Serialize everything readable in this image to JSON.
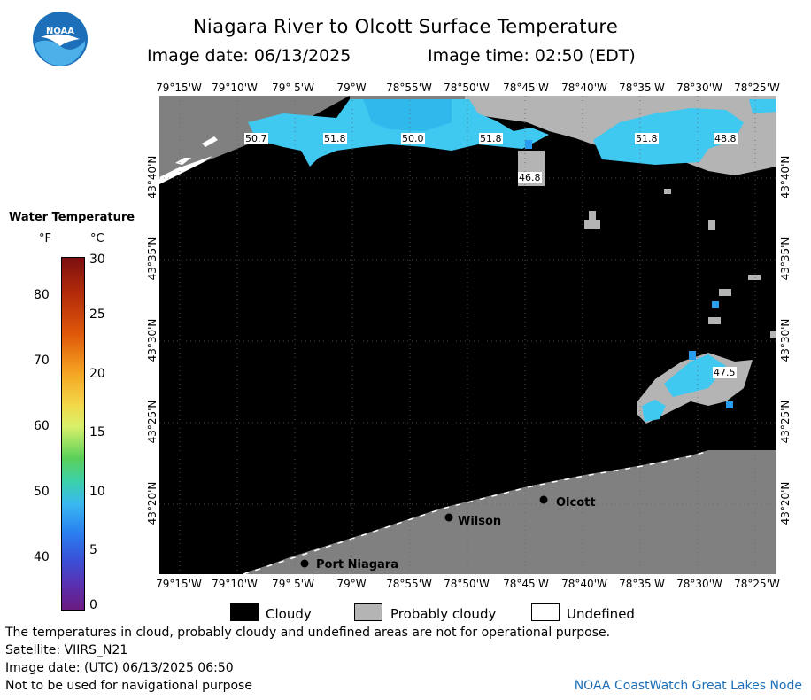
{
  "header": {
    "title": "Niagara River to Olcott Surface Temperature",
    "image_date": "Image date: 06/13/2025",
    "image_time": "Image time: 02:50 (EDT)"
  },
  "logo": {
    "text": "NOAA",
    "colors": {
      "blue": "#1c6fb8",
      "light": "#4db0e8",
      "white": "#ffffff"
    }
  },
  "longitudes": [
    "79°15'W",
    "79°10'W",
    "79° 5'W",
    "79°W",
    "78°55'W",
    "78°50'W",
    "78°45'W",
    "78°40'W",
    "78°35'W",
    "78°30'W",
    "78°25'W"
  ],
  "latitudes": [
    "43°40'N",
    "43°35'N",
    "43°30'N",
    "43°25'N",
    "43°20'N"
  ],
  "colorbar": {
    "title": "Water Temperature",
    "unit_f": "°F",
    "unit_c": "°C",
    "f_ticks": [
      "80",
      "70",
      "60",
      "50",
      "40"
    ],
    "c_ticks": [
      "30",
      "25",
      "20",
      "15",
      "10",
      "5",
      "0"
    ]
  },
  "temperature_labels": [
    "50.7",
    "51.8",
    "50.0",
    "51.8",
    "51.8",
    "48.8",
    "46.8",
    "47.5"
  ],
  "places": [
    "Olcott",
    "Wilson",
    "Port Niagara"
  ],
  "legend": {
    "cloudy": "Cloudy",
    "probably_cloudy": "Probably cloudy",
    "undefined": "Undefined",
    "colors": {
      "cloudy": "#000000",
      "probably_cloudy": "#b4b4b4",
      "undefined": "#ffffff"
    }
  },
  "footer": {
    "disclaimer": "The temperatures in cloud, probably cloudy and undefined areas are not for operational purpose.",
    "satellite": "Satellite: VIIRS_N21",
    "utc_date": "Image date: (UTC) 06/13/2025  06:50",
    "nav": "Not to be used for navigational purpose",
    "credit": "NOAA CoastWatch Great Lakes Node"
  },
  "colors": {
    "land": "#808080",
    "water_cyan": "#3fc8f0",
    "water_blue": "#2a9cf0"
  }
}
